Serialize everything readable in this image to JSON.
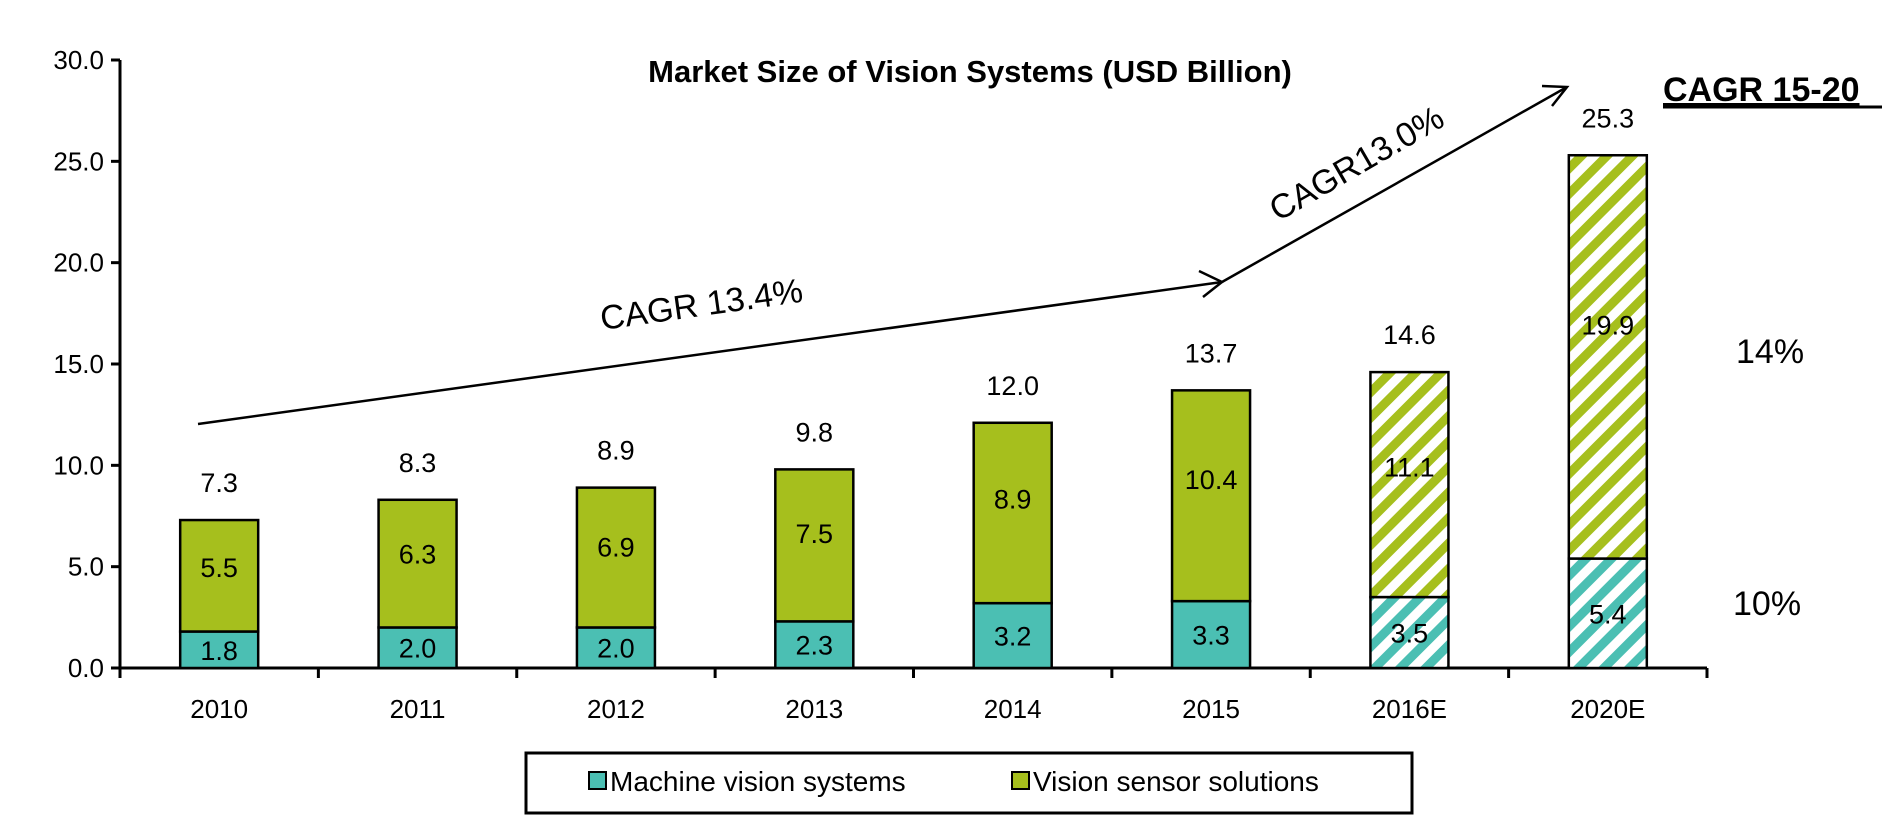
{
  "chart_data": {
    "type": "bar",
    "stacked": true,
    "title": "Market Size of Vision Systems (USD Billion)",
    "categories": [
      "2010",
      "2011",
      "2012",
      "2013",
      "2014",
      "2015",
      "2016E",
      "2020E"
    ],
    "estimated": [
      false,
      false,
      false,
      false,
      false,
      false,
      true,
      true
    ],
    "series": [
      {
        "name": "Machine vision systems",
        "values": [
          1.8,
          2.0,
          2.0,
          2.3,
          3.2,
          3.3,
          3.5,
          5.4
        ],
        "color": "#4bbfb3"
      },
      {
        "name": "Vision sensor solutions",
        "values": [
          5.5,
          6.3,
          6.9,
          7.5,
          8.9,
          10.4,
          11.1,
          19.9
        ],
        "color": "#a6bf1d"
      }
    ],
    "totals": [
      "7.3",
      "8.3",
      "8.9",
      "9.8",
      "12.0",
      "13.7",
      "14.6",
      "25.3"
    ],
    "y_ticks": [
      "0.0",
      "5.0",
      "10.0",
      "15.0",
      "20.0",
      "25.0",
      "30.0"
    ],
    "ylim": [
      0,
      30
    ],
    "xlabel": "",
    "ylabel": "",
    "grid": false,
    "legend_position": "bottom",
    "annotations": [
      {
        "text": "CAGR 13.4%",
        "from": "2010",
        "to": "2015"
      },
      {
        "text": "CAGR13.0%",
        "from": "2015",
        "to": "2020E"
      }
    ],
    "cagr_table": {
      "heading": "CAGR 15-20",
      "vision_sensor_solutions": "14%",
      "machine_vision_systems": "10%"
    }
  }
}
